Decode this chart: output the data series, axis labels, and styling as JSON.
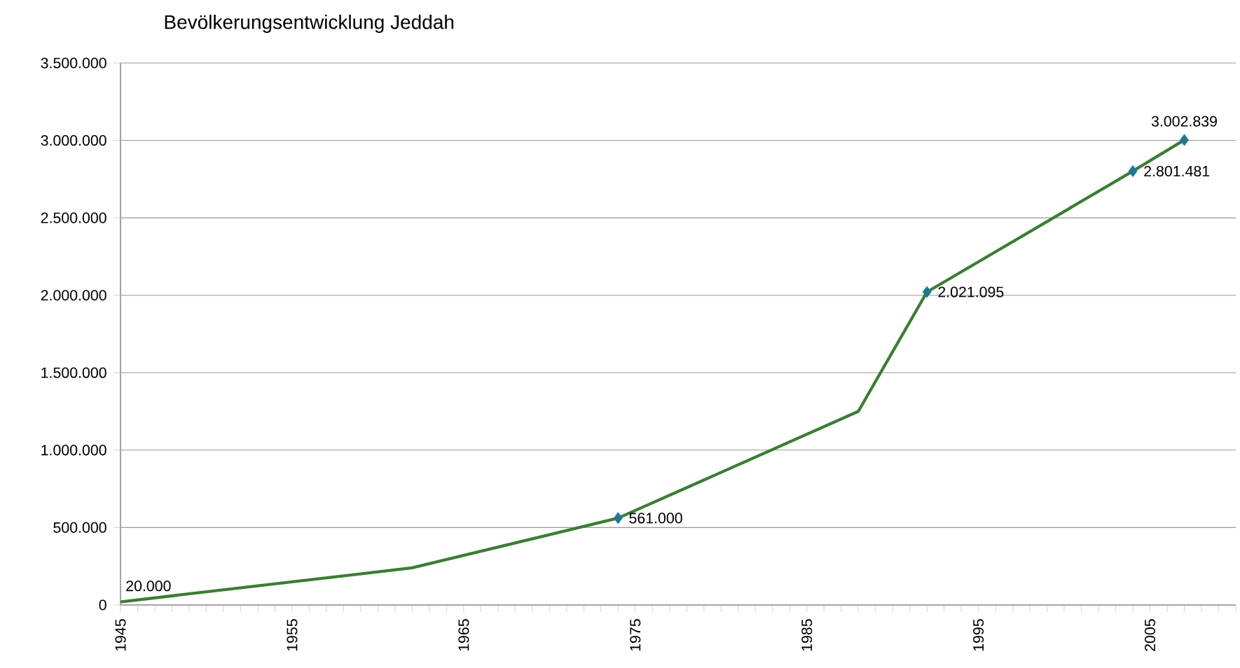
{
  "chart_data": {
    "type": "line",
    "title": "Bevölkerungsentwicklung Jeddah",
    "xlim": [
      1945,
      2010
    ],
    "xticks": [
      1945,
      {
        "value": 1946,
        "label": null
      },
      {
        "value": 1947,
        "label": null
      },
      {
        "value": 1948,
        "label": null
      },
      {
        "value": 1949,
        "label": null
      },
      {
        "value": 1950,
        "label": null
      },
      {
        "value": 1951,
        "label": null
      },
      {
        "value": 1952,
        "label": null
      },
      {
        "value": 1953,
        "label": null
      },
      {
        "value": 1954,
        "label": null
      },
      1955,
      {
        "value": 1956,
        "label": null
      },
      {
        "value": 1957,
        "label": null
      },
      {
        "value": 1958,
        "label": null
      },
      {
        "value": 1959,
        "label": null
      },
      {
        "value": 1960,
        "label": null
      },
      {
        "value": 1961,
        "label": null
      },
      {
        "value": 1962,
        "label": null
      },
      {
        "value": 1963,
        "label": null
      },
      {
        "value": 1964,
        "label": null
      },
      1965,
      {
        "value": 1966,
        "label": null
      },
      {
        "value": 1967,
        "label": null
      },
      {
        "value": 1968,
        "label": null
      },
      {
        "value": 1969,
        "label": null
      },
      {
        "value": 1970,
        "label": null
      },
      {
        "value": 1971,
        "label": null
      },
      {
        "value": 1972,
        "label": null
      },
      {
        "value": 1973,
        "label": null
      },
      {
        "value": 1974,
        "label": null
      },
      1975,
      {
        "value": 1976,
        "label": null
      },
      {
        "value": 1977,
        "label": null
      },
      {
        "value": 1978,
        "label": null
      },
      {
        "value": 1979,
        "label": null
      },
      {
        "value": 1980,
        "label": null
      },
      {
        "value": 1981,
        "label": null
      },
      {
        "value": 1982,
        "label": null
      },
      {
        "value": 1983,
        "label": null
      },
      {
        "value": 1984,
        "label": null
      },
      1985,
      {
        "value": 1986,
        "label": null
      },
      {
        "value": 1987,
        "label": null
      },
      {
        "value": 1988,
        "label": null
      },
      {
        "value": 1989,
        "label": null
      },
      {
        "value": 1990,
        "label": null
      },
      {
        "value": 1991,
        "label": null
      },
      {
        "value": 1992,
        "label": null
      },
      {
        "value": 1993,
        "label": null
      },
      {
        "value": 1994,
        "label": null
      },
      1995,
      {
        "value": 1996,
        "label": null
      },
      {
        "value": 1997,
        "label": null
      },
      {
        "value": 1998,
        "label": null
      },
      {
        "value": 1999,
        "label": null
      },
      {
        "value": 2000,
        "label": null
      },
      {
        "value": 2001,
        "label": null
      },
      {
        "value": 2002,
        "label": null
      },
      {
        "value": 2003,
        "label": null
      },
      {
        "value": 2004,
        "label": null
      },
      2005,
      {
        "value": 2006,
        "label": null
      },
      {
        "value": 2007,
        "label": null
      },
      {
        "value": 2008,
        "label": null
      },
      {
        "value": 2009,
        "label": null
      },
      {
        "value": 2010,
        "label": null
      }
    ],
    "ylim": [
      0,
      3500000
    ],
    "yticks": [
      0,
      {
        "value": 500000,
        "label": "500.000"
      },
      {
        "value": 1000000,
        "label": "1.000.000"
      },
      {
        "value": 1500000,
        "label": "1.500.000"
      },
      {
        "value": 2000000,
        "label": "2.000.000"
      },
      {
        "value": 2500000,
        "label": "2.500.000"
      },
      {
        "value": 3000000,
        "label": "3.000.000"
      },
      {
        "value": 3500000,
        "label": "3.500.000"
      }
    ],
    "grid": "y",
    "series": [
      {
        "color": "#3b7d34",
        "marker": "none",
        "x": [
          1945,
          1962,
          1974,
          1988,
          1992,
          2004,
          2007
        ],
        "values": [
          20000,
          240000,
          561000,
          1250000,
          2021095,
          2801481,
          3002839
        ],
        "value_labels": [
          "20.000",
          null,
          "561.000",
          null,
          "2.021.095",
          "2.801.481",
          "3.002.839"
        ]
      },
      {
        "type": "scatter",
        "color": "#2f7a5a",
        "marker": "diamond",
        "x": [
          1974,
          1992,
          2004,
          2007
        ],
        "values": [
          561000,
          2021095,
          2801481,
          3002839
        ]
      }
    ]
  }
}
